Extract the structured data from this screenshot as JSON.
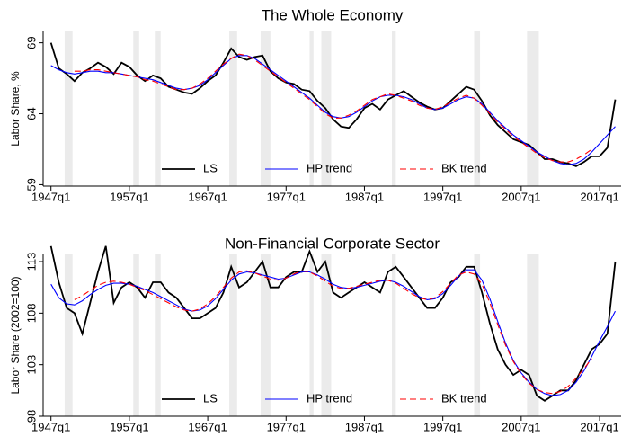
{
  "chart_data": [
    {
      "type": "line",
      "title": "The Whole Economy",
      "ylabel": "Labor Share, %",
      "x": [
        1947,
        1948,
        1949,
        1950,
        1951,
        1952,
        1953,
        1954,
        1955,
        1956,
        1957,
        1958,
        1959,
        1960,
        1961,
        1962,
        1963,
        1964,
        1965,
        1966,
        1967,
        1968,
        1969,
        1970,
        1971,
        1972,
        1973,
        1974,
        1975,
        1976,
        1977,
        1978,
        1979,
        1980,
        1981,
        1982,
        1983,
        1984,
        1985,
        1986,
        1987,
        1988,
        1989,
        1990,
        1991,
        1992,
        1993,
        1994,
        1995,
        1996,
        1997,
        1998,
        1999,
        2000,
        2001,
        2002,
        2003,
        2004,
        2005,
        2006,
        2007,
        2008,
        2009,
        2010,
        2011,
        2012,
        2013,
        2014,
        2015,
        2016,
        2017,
        2018,
        2019
      ],
      "series": [
        {
          "name": "LS",
          "color": "#000000",
          "linestyle": "solid",
          "values": [
            69,
            67.2,
            66.8,
            66.3,
            66.9,
            67.2,
            67.6,
            67.3,
            66.8,
            67.6,
            67.3,
            66.7,
            66.3,
            66.7,
            66.5,
            65.9,
            65.7,
            65.5,
            65.4,
            65.8,
            66.3,
            66.7,
            67.6,
            68.6,
            68.0,
            67.8,
            68.0,
            68.1,
            67.0,
            66.5,
            66.2,
            66.1,
            65.7,
            65.6,
            64.9,
            64.4,
            63.6,
            63.1,
            63.0,
            63.6,
            64.4,
            64.7,
            64.3,
            65.0,
            65.3,
            65.6,
            65.2,
            64.8,
            64.5,
            64.3,
            64.4,
            64.9,
            65.4,
            65.9,
            65.7,
            64.9,
            63.9,
            63.2,
            62.7,
            62.2,
            62.0,
            61.8,
            61.3,
            60.8,
            60.8,
            60.6,
            60.5,
            60.3,
            60.6,
            61.0,
            61.0,
            61.6,
            65.0
          ]
        },
        {
          "name": "HP trend",
          "color": "#0000ff",
          "linestyle": "solid",
          "values": [
            67.4,
            67.1,
            66.9,
            66.8,
            66.9,
            67.0,
            67.0,
            66.9,
            66.9,
            66.8,
            66.7,
            66.6,
            66.5,
            66.4,
            66.2,
            66.0,
            65.8,
            65.7,
            65.8,
            66.0,
            66.4,
            66.9,
            67.4,
            67.9,
            68.1,
            68.1,
            67.9,
            67.5,
            67.1,
            66.7,
            66.3,
            65.9,
            65.5,
            65.1,
            64.6,
            64.1,
            63.8,
            63.7,
            63.8,
            64.1,
            64.5,
            64.9,
            65.2,
            65.3,
            65.3,
            65.2,
            65.0,
            64.7,
            64.4,
            64.3,
            64.4,
            64.7,
            65.0,
            65.2,
            65.1,
            64.7,
            64.1,
            63.5,
            63.0,
            62.5,
            62.1,
            61.7,
            61.3,
            61.0,
            60.7,
            60.5,
            60.4,
            60.5,
            60.8,
            61.3,
            61.9,
            62.5,
            63.1
          ]
        },
        {
          "name": "BK trend",
          "color": "#ff0000",
          "linestyle": "dashed",
          "values": [
            null,
            null,
            null,
            67.0,
            67.0,
            67.1,
            67.1,
            67.0,
            66.9,
            66.8,
            66.7,
            66.6,
            66.4,
            66.3,
            66.1,
            65.9,
            65.7,
            65.7,
            65.8,
            66.1,
            66.5,
            67.0,
            67.5,
            67.9,
            68.2,
            68.1,
            67.8,
            67.4,
            67.0,
            66.6,
            66.2,
            65.8,
            65.4,
            65.0,
            64.5,
            64.0,
            63.7,
            63.7,
            63.9,
            64.2,
            64.6,
            65.0,
            65.2,
            65.4,
            65.3,
            65.1,
            64.9,
            64.6,
            64.4,
            64.3,
            64.5,
            64.8,
            65.1,
            65.3,
            65.1,
            64.6,
            64.0,
            63.4,
            62.9,
            62.4,
            62.0,
            61.6,
            61.2,
            60.9,
            60.7,
            60.6,
            60.6,
            60.8,
            61.1,
            61.5,
            null,
            null,
            null
          ]
        }
      ],
      "shaded_regions": [
        [
          1948.75,
          1949.75
        ],
        [
          1957.5,
          1958.25
        ],
        [
          1960.25,
          1961
        ],
        [
          1969.75,
          1970.75
        ],
        [
          1973.75,
          1975
        ],
        [
          1980,
          1980.5
        ],
        [
          1981.5,
          1982.75
        ],
        [
          1990.5,
          1991
        ],
        [
          2001,
          2001.75
        ],
        [
          2007.75,
          2009.25
        ]
      ],
      "xlim": [
        1946,
        2019.75
      ],
      "xticks": [
        {
          "value": 1947,
          "label": "1947q1"
        },
        {
          "value": 1957,
          "label": "1957q1"
        },
        {
          "value": 1967,
          "label": "1967q1"
        },
        {
          "value": 1977,
          "label": "1977q1"
        },
        {
          "value": 1987,
          "label": "1987q1"
        },
        {
          "value": 1997,
          "label": "1997q1"
        },
        {
          "value": 2007,
          "label": "2007q1"
        },
        {
          "value": 2017,
          "label": "2017q1"
        }
      ],
      "ylim": [
        58.9,
        69.8
      ],
      "yticks": [
        59,
        64,
        69
      ],
      "grid": false,
      "legend": "bottom"
    },
    {
      "type": "line",
      "title": "Non-Financial Corporate Sector",
      "ylabel": "Labor Share (2002=100)",
      "x": [
        1947,
        1948,
        1949,
        1950,
        1951,
        1952,
        1953,
        1954,
        1955,
        1956,
        1957,
        1958,
        1959,
        1960,
        1961,
        1962,
        1963,
        1964,
        1965,
        1966,
        1967,
        1968,
        1969,
        1970,
        1971,
        1972,
        1973,
        1974,
        1975,
        1976,
        1977,
        1978,
        1979,
        1980,
        1981,
        1982,
        1983,
        1984,
        1985,
        1986,
        1987,
        1988,
        1989,
        1990,
        1991,
        1992,
        1993,
        1994,
        1995,
        1996,
        1997,
        1998,
        1999,
        2000,
        2001,
        2002,
        2003,
        2004,
        2005,
        2006,
        2007,
        2008,
        2009,
        2010,
        2011,
        2012,
        2013,
        2014,
        2015,
        2016,
        2017,
        2018,
        2019
      ],
      "series": [
        {
          "name": "LS",
          "color": "#000000",
          "linestyle": "solid",
          "values": [
            114.5,
            111,
            108.5,
            108,
            106,
            109,
            112,
            114.5,
            109,
            110.5,
            111,
            110.5,
            109.5,
            111,
            111,
            110,
            109.5,
            108.5,
            107.5,
            107.5,
            108,
            108.5,
            110,
            112.5,
            110.5,
            111,
            112,
            113,
            110.5,
            110.5,
            111.5,
            112,
            112,
            114,
            112,
            113,
            110,
            109.5,
            110,
            110.5,
            111,
            110.5,
            110,
            112,
            112.5,
            111.5,
            110.5,
            109.5,
            108.5,
            108.5,
            109.5,
            111,
            111.5,
            112.5,
            112.5,
            110,
            107,
            104.5,
            103,
            102,
            102.5,
            102,
            100,
            99.5,
            100,
            100.5,
            100.5,
            101.5,
            103,
            104.5,
            105,
            106,
            113
          ]
        },
        {
          "name": "HP trend",
          "color": "#0000ff",
          "linestyle": "solid",
          "values": [
            110.8,
            109.5,
            108.9,
            108.8,
            109.2,
            109.8,
            110.3,
            110.7,
            110.9,
            110.9,
            110.8,
            110.6,
            110.3,
            110.0,
            109.6,
            109.2,
            108.8,
            108.4,
            108.2,
            108.3,
            108.7,
            109.4,
            110.3,
            111.2,
            111.8,
            112.0,
            111.9,
            111.7,
            111.5,
            111.3,
            111.4,
            111.7,
            112.0,
            112.0,
            111.7,
            111.3,
            110.8,
            110.5,
            110.4,
            110.5,
            110.7,
            110.9,
            111.1,
            111.2,
            111.0,
            110.6,
            110.1,
            109.6,
            109.3,
            109.4,
            109.9,
            110.7,
            111.6,
            112.2,
            112.2,
            111.2,
            109.4,
            107.2,
            105.1,
            103.4,
            102.2,
            101.3,
            100.6,
            100.2,
            100.0,
            100.1,
            100.5,
            101.3,
            102.4,
            103.8,
            105.3,
            106.7,
            108.2
          ]
        },
        {
          "name": "BK trend",
          "color": "#ff0000",
          "linestyle": "dashed",
          "values": [
            null,
            null,
            null,
            109.3,
            109.7,
            110.2,
            110.7,
            111.0,
            111.1,
            111.0,
            110.8,
            110.5,
            110.2,
            109.8,
            109.4,
            109.0,
            108.6,
            108.3,
            108.2,
            108.4,
            108.9,
            109.6,
            110.5,
            111.4,
            112.0,
            112.1,
            111.9,
            111.6,
            111.3,
            111.2,
            111.4,
            111.8,
            112.1,
            112.0,
            111.6,
            111.1,
            110.6,
            110.4,
            110.4,
            110.6,
            110.8,
            111.0,
            111.2,
            111.2,
            110.9,
            110.4,
            109.9,
            109.5,
            109.3,
            109.5,
            110.1,
            110.9,
            111.7,
            112.0,
            111.8,
            110.8,
            109.0,
            106.9,
            104.9,
            103.3,
            102.1,
            101.2,
            100.6,
            100.3,
            100.2,
            100.4,
            100.9,
            101.7,
            102.6,
            103.6,
            null,
            null,
            null
          ]
        }
      ],
      "shaded_regions": [
        [
          1948.75,
          1949.75
        ],
        [
          1957.5,
          1958.25
        ],
        [
          1960.25,
          1961
        ],
        [
          1969.75,
          1970.75
        ],
        [
          1973.75,
          1975
        ],
        [
          1980,
          1980.5
        ],
        [
          1981.5,
          1982.75
        ],
        [
          1990.5,
          1991
        ],
        [
          2001,
          2001.75
        ],
        [
          2007.75,
          2009.25
        ]
      ],
      "xlim": [
        1946,
        2019.75
      ],
      "xticks": [
        {
          "value": 1947,
          "label": "1947q1"
        },
        {
          "value": 1957,
          "label": "1957q1"
        },
        {
          "value": 1967,
          "label": "1967q1"
        },
        {
          "value": 1977,
          "label": "1977q1"
        },
        {
          "value": 1987,
          "label": "1987q1"
        },
        {
          "value": 1997,
          "label": "1997q1"
        },
        {
          "value": 2007,
          "label": "2007q1"
        },
        {
          "value": 2017,
          "label": "2017q1"
        }
      ],
      "ylim": [
        98,
        113.7
      ],
      "yticks": [
        98,
        103,
        108,
        113
      ],
      "grid": false,
      "legend": "bottom"
    }
  ]
}
